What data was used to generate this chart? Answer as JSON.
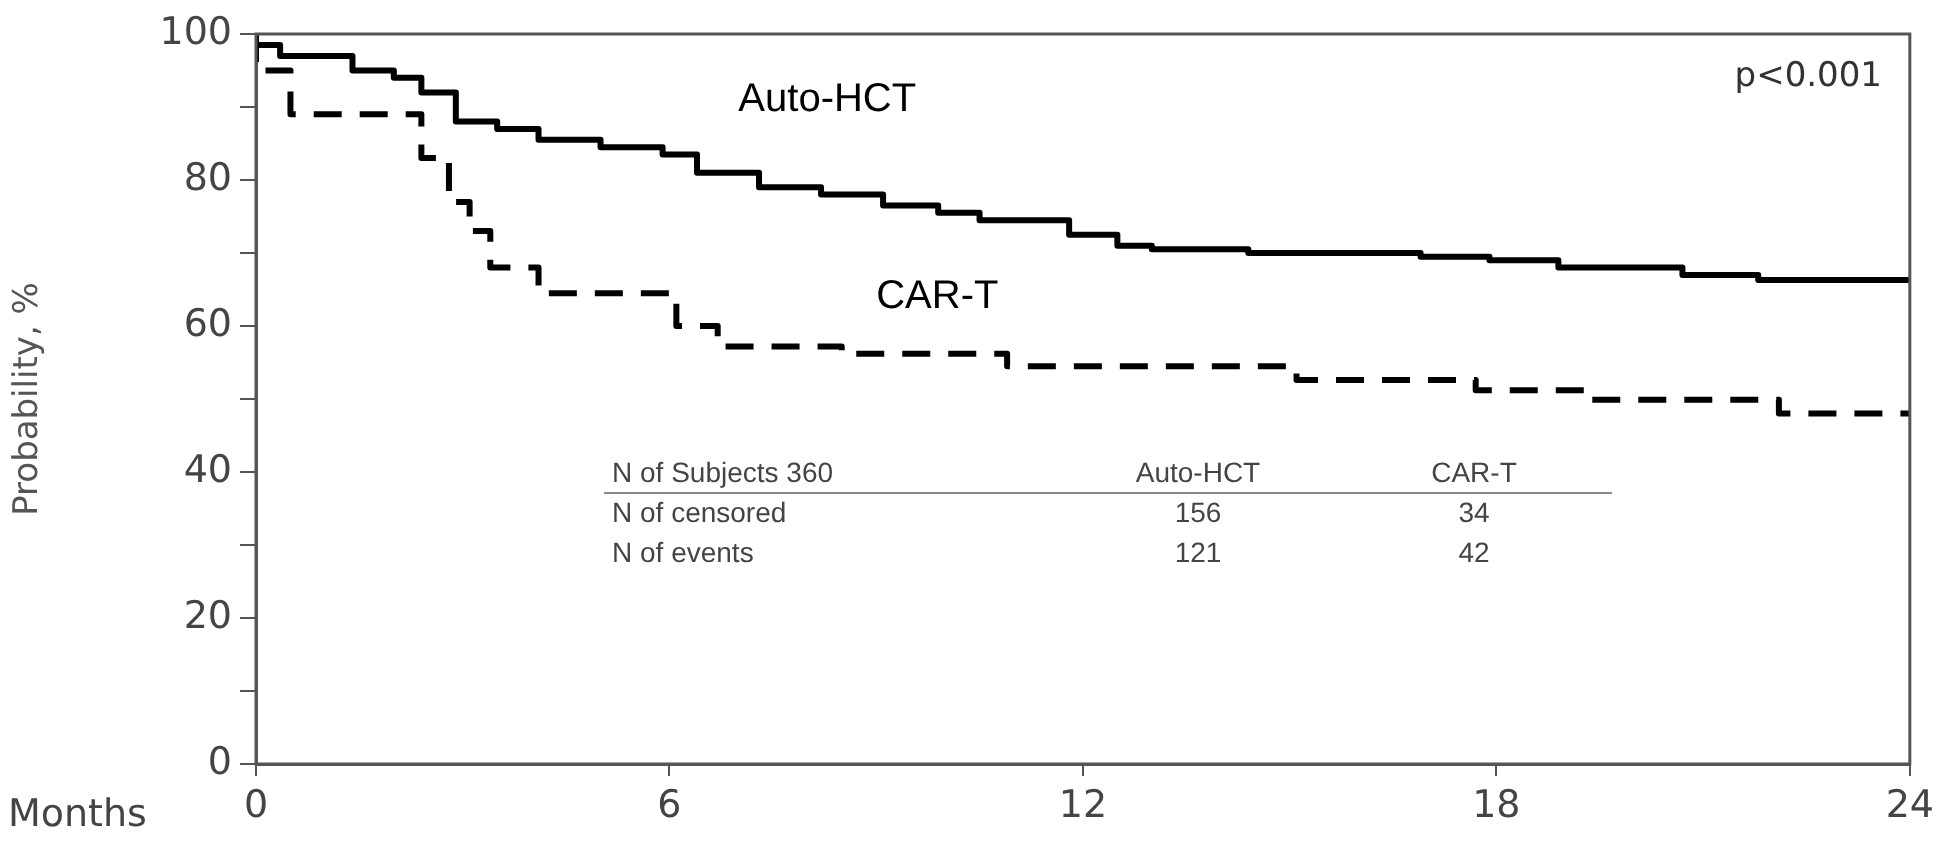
{
  "chart_data": {
    "type": "step",
    "xlabel": "Months",
    "ylabel": "Probability, %",
    "xlim": [
      0,
      24
    ],
    "xticks": [
      0,
      6,
      12,
      18,
      24
    ],
    "ylim": [
      0,
      100
    ],
    "yticks": [
      0,
      {
        "value": 10,
        "label": null
      },
      20,
      {
        "value": 30,
        "label": null
      },
      40,
      {
        "value": 50,
        "label": null
      },
      60,
      {
        "value": 70,
        "label": null
      },
      80,
      {
        "value": 90,
        "label": null
      },
      100
    ],
    "grid": false,
    "legend": false,
    "marker": "none",
    "series": [
      {
        "name": "Auto-HCT",
        "color": "#000000",
        "line_style": "solid",
        "x": [
          0,
          0.35,
          1.4,
          2.0,
          2.4,
          2.9,
          3.5,
          4.1,
          5.0,
          5.9,
          6.4,
          7.3,
          8.2,
          9.1,
          9.9,
          10.5,
          11.8,
          12.5,
          13.0,
          14.4,
          16.9,
          17.9,
          18.9,
          20.7,
          21.8,
          23.4,
          24
        ],
        "values": [
          100,
          98.5,
          97,
          95,
          94,
          92,
          88,
          87,
          85.5,
          84.5,
          83.5,
          81,
          79,
          78,
          76.5,
          75.5,
          74.5,
          72.5,
          71,
          70.5,
          70,
          69.5,
          69,
          68,
          67,
          66.3,
          66.3
        ]
      },
      {
        "name": "CAR-T",
        "color": "#000000",
        "line_style": "dashed",
        "x": [
          0,
          0.5,
          2.4,
          2.8,
          3.1,
          3.4,
          4.1,
          6.1,
          6.7,
          8.5,
          10.9,
          15.1,
          17.7,
          19.3,
          22.1,
          22.9,
          24
        ],
        "values": [
          100,
          95,
          89,
          83,
          77,
          73,
          68,
          64.5,
          60,
          57.2,
          56.2,
          54.5,
          52.6,
          51.2,
          49.9,
          48,
          48
        ]
      }
    ],
    "annotations": [
      "p<0.001",
      "N of Subjects 360",
      "Auto-HCT",
      "CAR-T",
      "N of censored",
      "156",
      "34",
      "N of events",
      "121",
      "42"
    ]
  }
}
